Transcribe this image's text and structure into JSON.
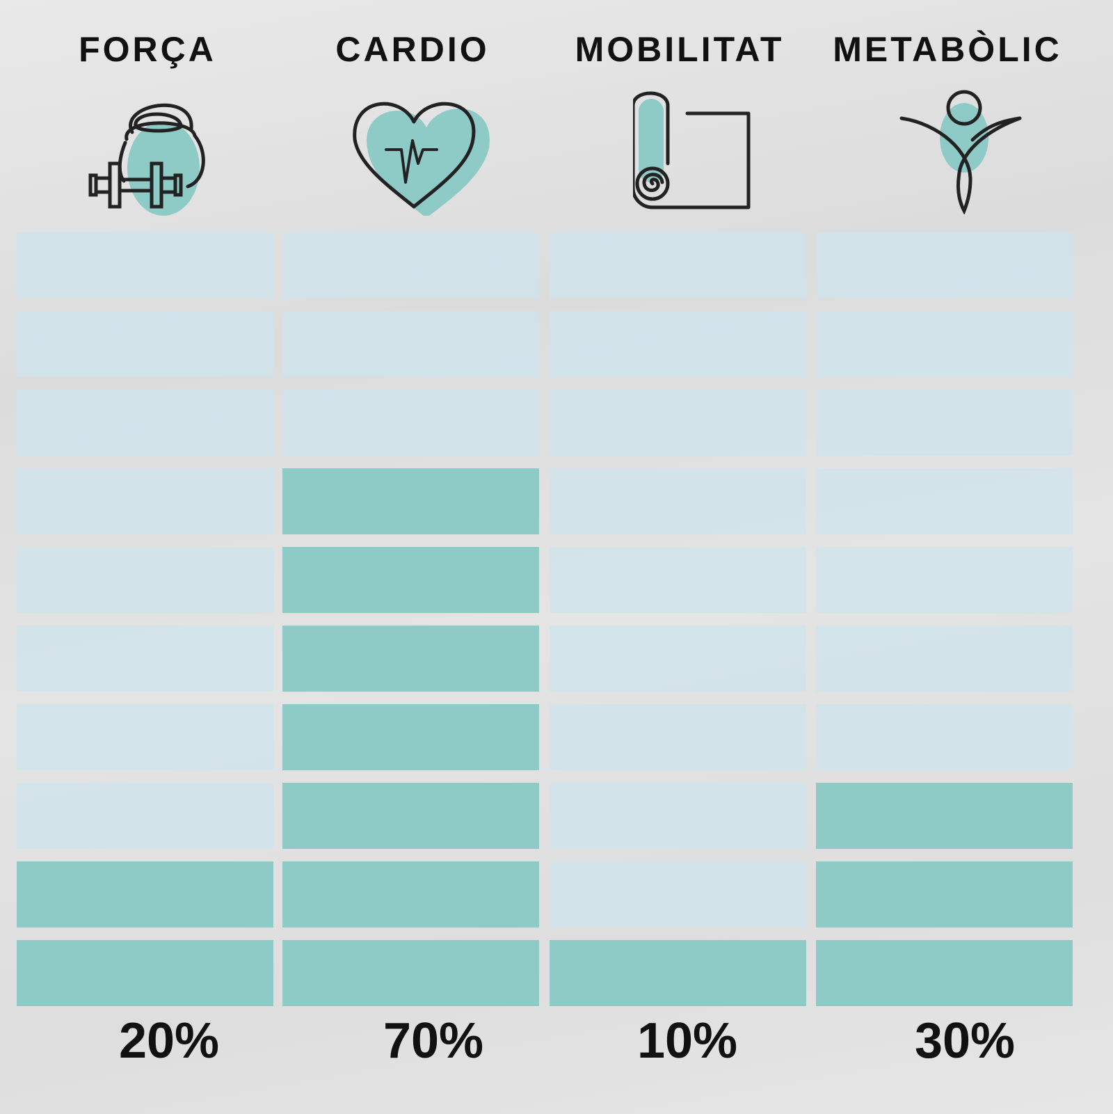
{
  "chart_data": {
    "type": "bar",
    "categories": [
      "FORÇA",
      "CARDIO",
      "MOBILITAT",
      "METABÒLIC"
    ],
    "values": [
      20,
      70,
      10,
      30
    ],
    "value_labels": [
      "20%",
      "70%",
      "10%",
      "30%"
    ],
    "ylim": [
      0,
      100
    ],
    "segments": 10,
    "icons": [
      "kettlebell-dumbbell-icon",
      "heart-pulse-icon",
      "yoga-mat-icon",
      "person-figure-icon"
    ],
    "colors": {
      "filled": "#8ecbc7",
      "empty": "#cfe4ec",
      "text": "#111111"
    }
  }
}
